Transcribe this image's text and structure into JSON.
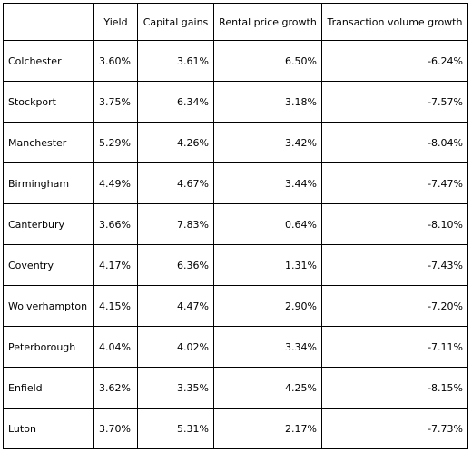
{
  "table": {
    "headers": [
      "",
      "Yield",
      "Capital gains",
      "Rental price growth",
      "Transaction volume growth"
    ],
    "rows": [
      [
        "Colchester",
        "3.60%",
        "3.61%",
        "6.50%",
        "-6.24%"
      ],
      [
        "Stockport",
        "3.75%",
        "6.34%",
        "3.18%",
        "-7.57%"
      ],
      [
        "Manchester",
        "5.29%",
        "4.26%",
        "3.42%",
        "-8.04%"
      ],
      [
        "Birmingham",
        "4.49%",
        "4.67%",
        "3.44%",
        "-7.47%"
      ],
      [
        "Canterbury",
        "3.66%",
        "7.83%",
        "0.64%",
        "-8.10%"
      ],
      [
        "Coventry",
        "4.17%",
        "6.36%",
        "1.31%",
        "-7.43%"
      ],
      [
        "Wolverhampton",
        "4.15%",
        "4.47%",
        "2.90%",
        "-7.20%"
      ],
      [
        "Peterborough",
        "4.04%",
        "4.02%",
        "3.34%",
        "-7.11%"
      ],
      [
        "Enfield",
        "3.62%",
        "3.35%",
        "4.25%",
        "-8.15%"
      ],
      [
        "Luton",
        "3.70%",
        "5.31%",
        "2.17%",
        "-7.73%"
      ]
    ]
  }
}
